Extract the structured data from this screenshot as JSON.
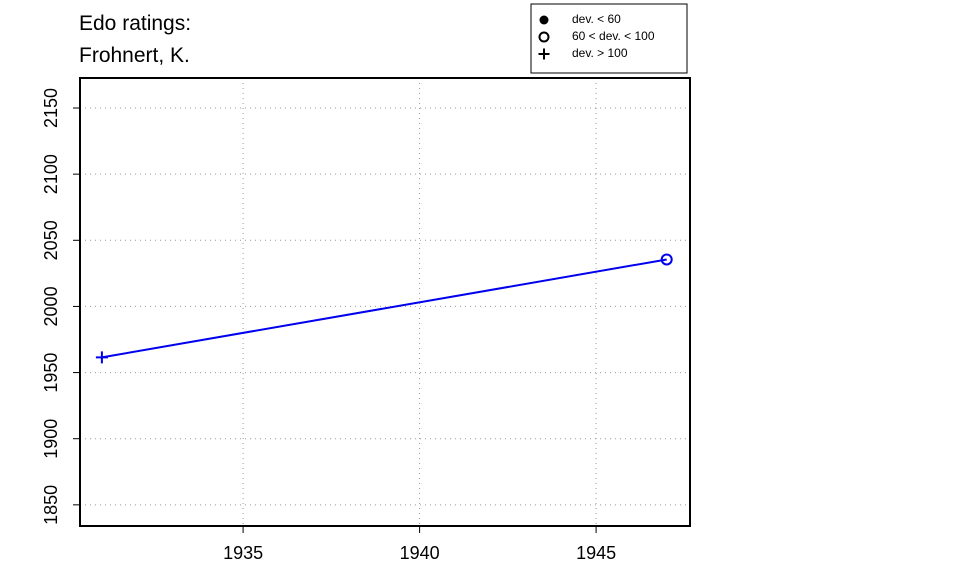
{
  "chart_data": {
    "type": "line",
    "title": "Edo ratings:",
    "subtitle": "Frohnert, K.",
    "x": [
      1931,
      1947
    ],
    "series": [
      {
        "name": "Frohnert, K.",
        "color": "#0000ee",
        "values": [
          1961.5,
          2035.5
        ],
        "markers": [
          "plus",
          "circle"
        ]
      }
    ],
    "legend": [
      {
        "label": "dev. < 60",
        "symbol": "dot"
      },
      {
        "label": "60 < dev. < 100",
        "symbol": "circle"
      },
      {
        "label": "dev. > 100",
        "symbol": "plus"
      }
    ],
    "legend_position": "top-right",
    "xlim": [
      1930.38,
      1947.66
    ],
    "xticks": [
      1935,
      1940,
      1945
    ],
    "ylim": [
      1834,
      2172.7
    ],
    "yticks": [
      1850,
      1900,
      1950,
      2000,
      2050,
      2100,
      2150
    ],
    "grid": true
  }
}
